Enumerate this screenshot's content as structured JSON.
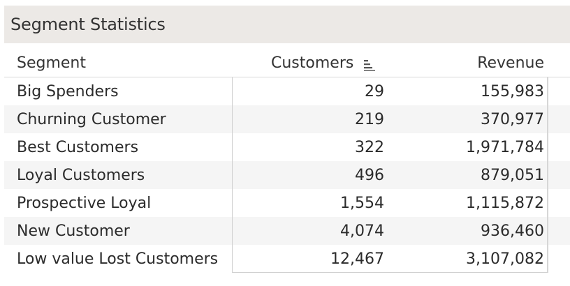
{
  "title": "Segment Statistics",
  "columns": {
    "segment": "Segment",
    "customers": "Customers",
    "revenue": "Revenue"
  },
  "sort_icon": "sort-descending-icon",
  "rows": [
    {
      "segment": "Big Spenders",
      "customers": "29",
      "revenue": "155,983"
    },
    {
      "segment": "Churning Customer",
      "customers": "219",
      "revenue": "370,977"
    },
    {
      "segment": "Best Customers",
      "customers": "322",
      "revenue": "1,971,784"
    },
    {
      "segment": "Loyal Customers",
      "customers": "496",
      "revenue": "879,051"
    },
    {
      "segment": "Prospective Loyal",
      "customers": "1,554",
      "revenue": "1,115,872"
    },
    {
      "segment": "New Customer",
      "customers": "4,074",
      "revenue": "936,460"
    },
    {
      "segment": "Low value Lost Customers",
      "customers": "12,467",
      "revenue": "3,107,082"
    }
  ]
}
